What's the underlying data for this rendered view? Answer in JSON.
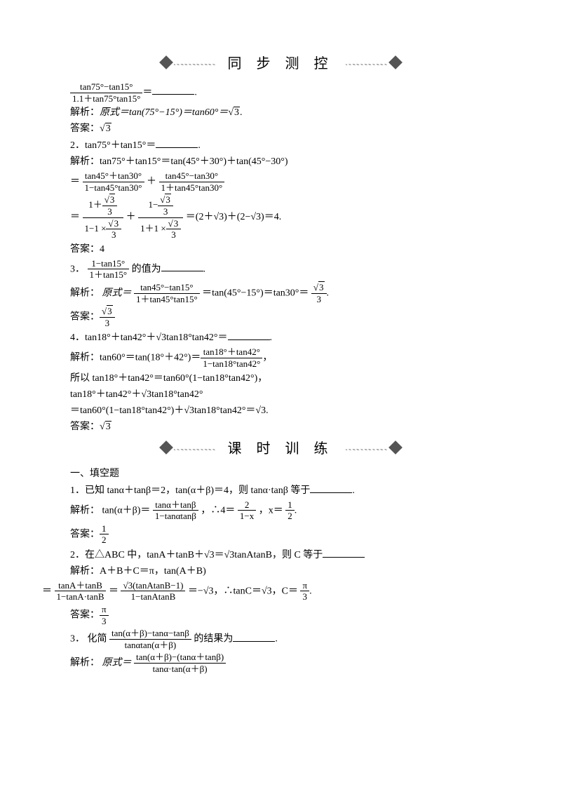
{
  "banner1": "同 步 测 控",
  "banner2": "课 时 训 练",
  "q1": {
    "num": "1.",
    "expr_num": "tan75°−tan15°",
    "expr_den": "1＋tan75°tan15°",
    "equals": "＝",
    "sol_label": "解析：",
    "sol": "原式＝tan(75°−15°)＝tan60°＝",
    "sol_val": "3",
    "ans_label": "答案：",
    "ans": "3"
  },
  "q2": {
    "num": "2．",
    "expr": "tan75°＋tan15°＝",
    "sol_label": "解析：",
    "sol1": "tan75°＋tan15°＝tan(45°＋30°)＋tan(45°−30°)",
    "f1_num": "tan45°＋tan30°",
    "f1_den": "1−tan45°tan30°",
    "f2_num": "tan45°−tan30°",
    "f2_den": "1＋tan45°tan30°",
    "eq": "＝",
    "plus": "＋",
    "line3_numL_top": "1＋",
    "line3_numR_top": "1−",
    "sqrt3": "3",
    "three": "3",
    "den1": "1−1 ×",
    "den2": "1＋1 ×",
    "result": "＝(2＋√3)＋(2−√3)＝4.",
    "ans_label": "答案：",
    "ans": "4"
  },
  "q3": {
    "num": "3．",
    "expr_num": "1−tan15°",
    "expr_den": "1＋tan15°",
    "tail": "的值为",
    "sol_label": "解析：",
    "sol_pre": "原式＝",
    "f_num": "tan45°−tan15°",
    "f_den": "1＋tan45°tan15°",
    "mid": "＝tan(45°−15°)＝tan30°＝",
    "rnum": "3",
    "rden": "3",
    "ans_label": "答案：",
    "ans_num": "3",
    "ans_den": "3"
  },
  "q4": {
    "num": "4．",
    "expr": "tan18°＋tan42°＋√3tan18°tan42°＝",
    "sol_label": "解析：",
    "s1a": "tan60°＝tan(18°＋42°)＝",
    "s1_num": "tan18°＋tan42°",
    "s1_den": "1−tan18°tan42°",
    "s1b": "，",
    "s2": "所以 tan18°＋tan42°＝tan60°(1−tan18°tan42°)，",
    "s3": "tan18°＋tan42°＋√3tan18°tan42°",
    "s4": "＝tan60°(1−tan18°tan42°)＋√3tan18°tan42°＝√3.",
    "ans_label": "答案：",
    "ans": "3"
  },
  "sectA": "一、填空题",
  "p1": {
    "num": "1．",
    "q": "已知 tanα＋tanβ＝2，tan(α＋β)＝4，则 tanα·tanβ 等于",
    "sol_label": "解析：",
    "s_pre": "tan(α＋β)＝",
    "f_num": "tanα＋tanβ",
    "f_den": "1−tanαtanβ",
    "mid": "，∴4＝",
    "f2_num": "2",
    "f2_den": "1−x",
    "mid2": "，x＝",
    "f3_num": "1",
    "f3_den": "2",
    "ans_label": "答案：",
    "ans_num": "1",
    "ans_den": "2"
  },
  "p2": {
    "num": "2．",
    "q_a": "在△ABC 中，tanA＋tanB＋√3＝√3tanAtanB，则 C 等于",
    "sol_label": "解析：",
    "s1": "A＋B＋C＝π，tan(A＋B)",
    "eq": "＝",
    "fL_num": "tanA＋tanB",
    "fL_den": "1−tanA·tanB",
    "fR_num": "√3(tanAtanB−1)",
    "fR_den": "1−tanAtanB",
    "tail": "＝−√3，∴tanC＝√3，C＝",
    "r_num": "π",
    "r_den": "3",
    "ans_label": "答案：",
    "ans_num": "π",
    "ans_den": "3"
  },
  "p3": {
    "num": "3．",
    "pre": "化简",
    "f_num": "tan(α＋β)−tanα−tanβ",
    "f_den": "tanαtan(α＋β)",
    "tail": "的结果为",
    "sol_label": "解析：",
    "s_pre": "原式＝",
    "s_num": "tan(α＋β)−(tanα＋tanβ)",
    "s_den": "tanα·tan(α＋β)"
  }
}
